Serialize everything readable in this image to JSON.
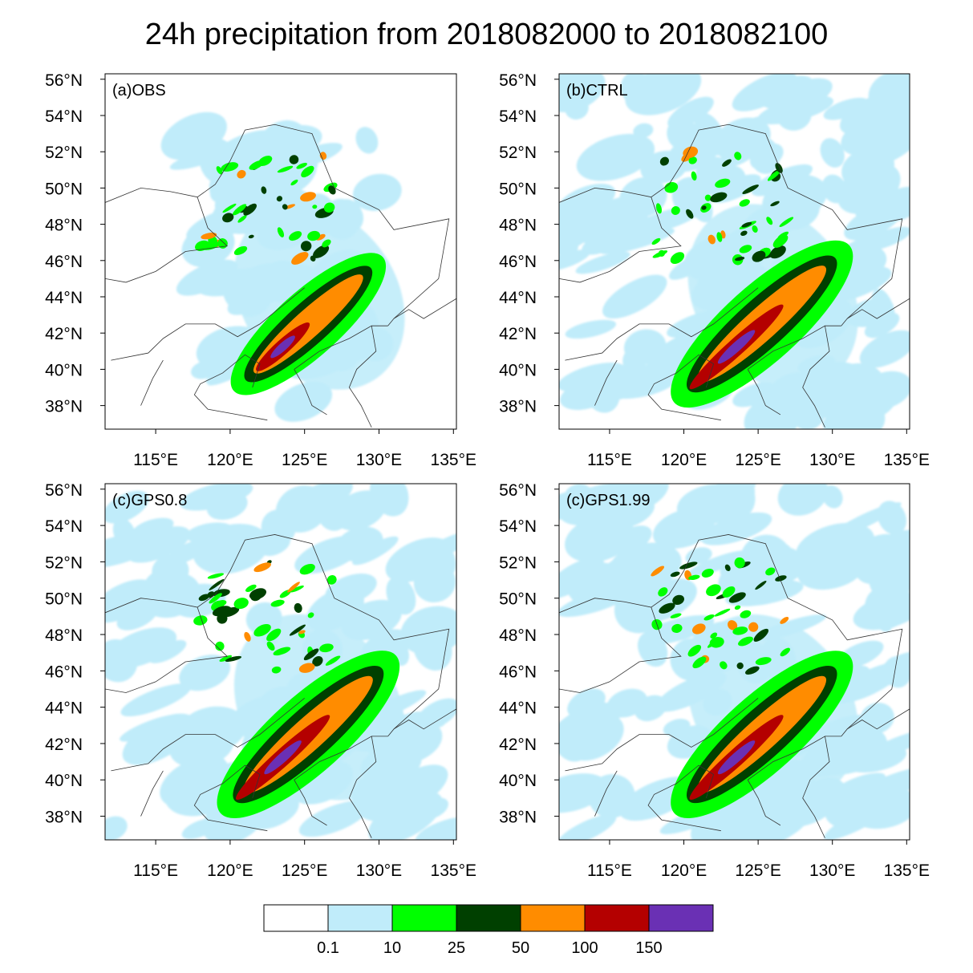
{
  "title": "24h precipitation from 2018082000 to 2018082100",
  "axes": {
    "lat_ticks": [
      "56°N",
      "54°N",
      "52°N",
      "50°N",
      "48°N",
      "46°N",
      "44°N",
      "42°N",
      "40°N",
      "38°N"
    ],
    "lon_ticks": [
      "115°E",
      "120°E",
      "125°E",
      "130°E",
      "135°E"
    ]
  },
  "panels": [
    {
      "label": "(a)OBS"
    },
    {
      "label": "(b)CTRL"
    },
    {
      "label": "(c)GPS0.8"
    },
    {
      "label": "(c)GPS1.99"
    }
  ],
  "colorbar": {
    "labels": [
      "0.1",
      "10",
      "25",
      "50",
      "100",
      "150"
    ],
    "colors": [
      "#ffffff",
      "#c0ecfa",
      "#00ff00",
      "#004000",
      "#ff8c00",
      "#b40000",
      "#6a30b4"
    ]
  },
  "chart_data": {
    "type": "heatmap",
    "title": "24h precipitation from 2018082000 to 2018082100",
    "lat_range": [
      36.7,
      56.3
    ],
    "lon_range": [
      111.6,
      135.2
    ],
    "lat_ticks": [
      56,
      54,
      52,
      50,
      48,
      46,
      44,
      42,
      40,
      38
    ],
    "lon_ticks": [
      115,
      120,
      125,
      130,
      135
    ],
    "levels": [
      0.1,
      10,
      25,
      50,
      100,
      150
    ],
    "panels": [
      "(a)OBS",
      "(b)CTRL",
      "(c)GPS0.8",
      "(c)GPS1.99"
    ],
    "rain_band_axis": {
      "from_lon": 120.5,
      "from_lat": 39.0,
      "to_lon": 130.0,
      "to_lat": 46.0
    }
  }
}
